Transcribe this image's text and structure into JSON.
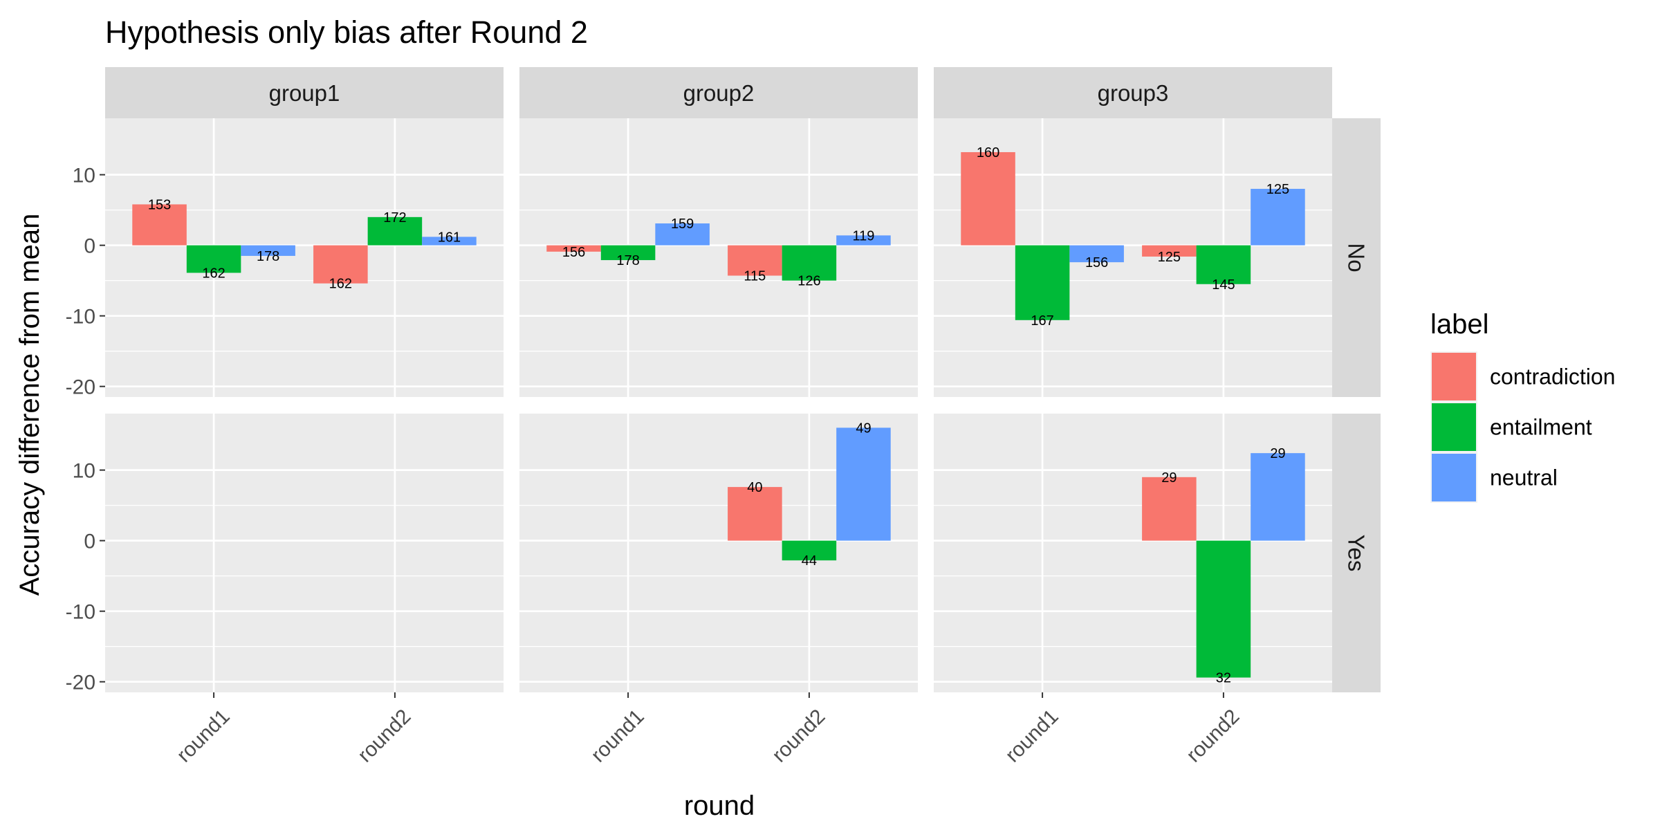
{
  "chart_data": {
    "type": "bar",
    "title": "Hypothesis only bias after Round 2",
    "xlabel": "round",
    "ylabel": "Accuracy difference from mean",
    "x_categories": [
      "round1",
      "round2"
    ],
    "column_facets": [
      "group1",
      "group2",
      "group3"
    ],
    "row_facets": [
      "No",
      "Yes"
    ],
    "ylim": [
      -21.5,
      18
    ],
    "y_ticks": [
      -20,
      -10,
      0,
      10
    ],
    "grid": true,
    "legend": {
      "title": "label",
      "placement": "right",
      "entries": [
        {
          "name": "contradiction",
          "color": "#F8766D"
        },
        {
          "name": "entailment",
          "color": "#00BA38"
        },
        {
          "name": "neutral",
          "color": "#619CFF"
        }
      ]
    },
    "bars": [
      {
        "group": "group1",
        "hyp": "No",
        "round": "round1",
        "label": "contradiction",
        "value": 5.8,
        "count": "153"
      },
      {
        "group": "group1",
        "hyp": "No",
        "round": "round1",
        "label": "entailment",
        "value": -3.9,
        "count": "162"
      },
      {
        "group": "group1",
        "hyp": "No",
        "round": "round1",
        "label": "neutral",
        "value": -1.5,
        "count": "178"
      },
      {
        "group": "group1",
        "hyp": "No",
        "round": "round2",
        "label": "contradiction",
        "value": -5.4,
        "count": "162"
      },
      {
        "group": "group1",
        "hyp": "No",
        "round": "round2",
        "label": "entailment",
        "value": 4.0,
        "count": "172"
      },
      {
        "group": "group1",
        "hyp": "No",
        "round": "round2",
        "label": "neutral",
        "value": 1.2,
        "count": "161"
      },
      {
        "group": "group2",
        "hyp": "No",
        "round": "round1",
        "label": "contradiction",
        "value": -0.9,
        "count": "156"
      },
      {
        "group": "group2",
        "hyp": "No",
        "round": "round1",
        "label": "entailment",
        "value": -2.1,
        "count": "178"
      },
      {
        "group": "group2",
        "hyp": "No",
        "round": "round1",
        "label": "neutral",
        "value": 3.1,
        "count": "159"
      },
      {
        "group": "group2",
        "hyp": "No",
        "round": "round2",
        "label": "contradiction",
        "value": -4.3,
        "count": "115"
      },
      {
        "group": "group2",
        "hyp": "No",
        "round": "round2",
        "label": "entailment",
        "value": -5.0,
        "count": "126"
      },
      {
        "group": "group2",
        "hyp": "No",
        "round": "round2",
        "label": "neutral",
        "value": 1.4,
        "count": "119"
      },
      {
        "group": "group3",
        "hyp": "No",
        "round": "round1",
        "label": "contradiction",
        "value": 13.2,
        "count": "160"
      },
      {
        "group": "group3",
        "hyp": "No",
        "round": "round1",
        "label": "entailment",
        "value": -10.6,
        "count": "167"
      },
      {
        "group": "group3",
        "hyp": "No",
        "round": "round1",
        "label": "neutral",
        "value": -2.4,
        "count": "156"
      },
      {
        "group": "group3",
        "hyp": "No",
        "round": "round2",
        "label": "contradiction",
        "value": -1.6,
        "count": "125"
      },
      {
        "group": "group3",
        "hyp": "No",
        "round": "round2",
        "label": "entailment",
        "value": -5.5,
        "count": "145"
      },
      {
        "group": "group3",
        "hyp": "No",
        "round": "round2",
        "label": "neutral",
        "value": 8.0,
        "count": "125"
      },
      {
        "group": "group2",
        "hyp": "Yes",
        "round": "round2",
        "label": "contradiction",
        "value": 7.6,
        "count": "40"
      },
      {
        "group": "group2",
        "hyp": "Yes",
        "round": "round2",
        "label": "entailment",
        "value": -2.8,
        "count": "44"
      },
      {
        "group": "group2",
        "hyp": "Yes",
        "round": "round2",
        "label": "neutral",
        "value": 16.0,
        "count": "49"
      },
      {
        "group": "group3",
        "hyp": "Yes",
        "round": "round2",
        "label": "contradiction",
        "value": 9.0,
        "count": "29"
      },
      {
        "group": "group3",
        "hyp": "Yes",
        "round": "round2",
        "label": "entailment",
        "value": -19.4,
        "count": "32"
      },
      {
        "group": "group3",
        "hyp": "Yes",
        "round": "round2",
        "label": "neutral",
        "value": 12.4,
        "count": "29"
      }
    ]
  }
}
